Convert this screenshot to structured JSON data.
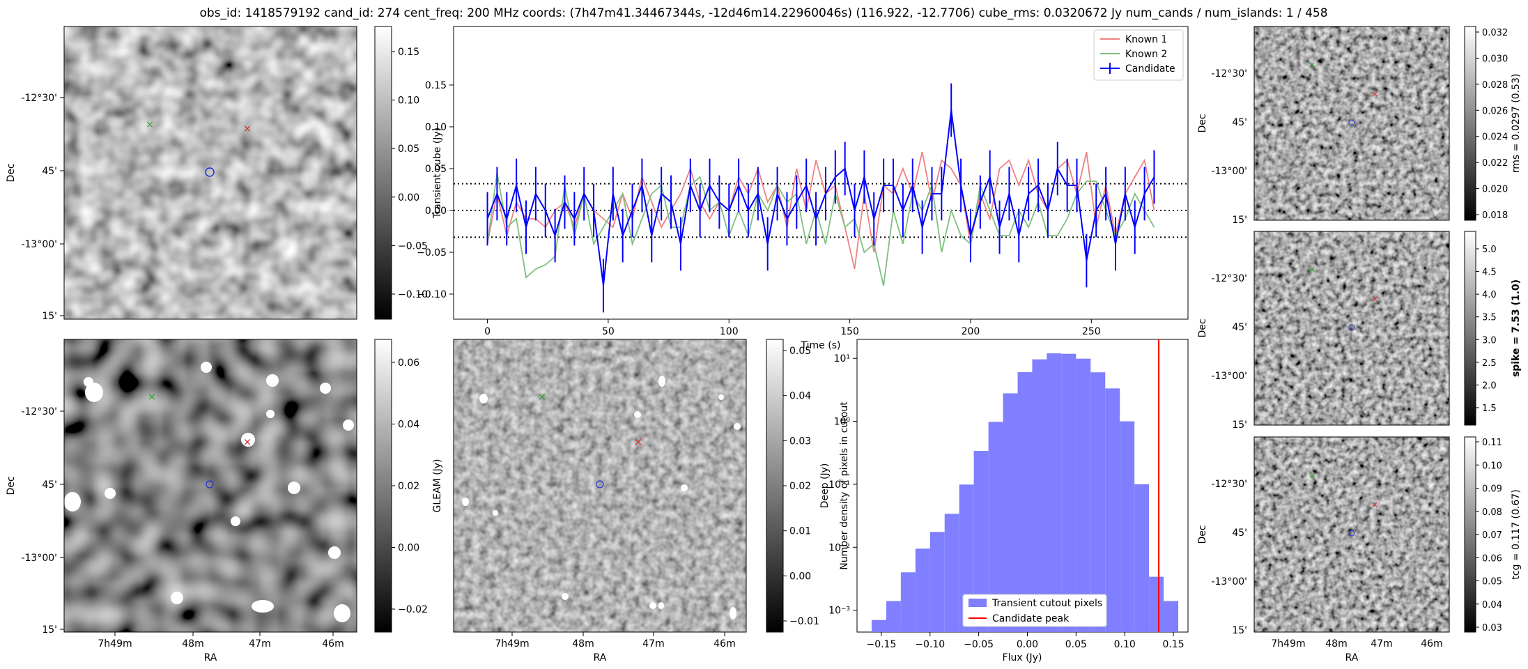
{
  "title": "obs_id: 1418579192 cand_id: 274 cent_freq: 200 MHz coords: (7h47m41.34467344s, -12d46m14.22960046s) (116.922, -12.7706) cube_rms: 0.0320672 Jy num_cands / num_islands: 1 / 458",
  "chart_data": [
    {
      "type": "image",
      "name": "transient-cube-image",
      "ylabel": "Dec",
      "xlabel": "",
      "dec_ticks": [
        "-12°30'",
        "45'",
        "-13°00'",
        "15'"
      ],
      "ra_ticks": [],
      "colorbar": {
        "label": "",
        "ticks": [
          "0.15",
          "0.10",
          "0.05",
          "0.00",
          "−0.05",
          "−0.10"
        ],
        "range": [
          -0.13,
          0.18
        ]
      },
      "markers": [
        {
          "label": "known-1",
          "color": "#d62728",
          "symbol": "x"
        },
        {
          "label": "known-2",
          "color": "#2ca02c",
          "symbol": "x"
        },
        {
          "label": "candidate",
          "color": "#1f2fd6",
          "symbol": "o"
        }
      ]
    },
    {
      "type": "line",
      "name": "lightcurve",
      "xlabel": "Time (s)",
      "ylabel": "Transient cube (Jy)",
      "xlim": [
        -14,
        290
      ],
      "ylim": [
        -0.13,
        0.22
      ],
      "xticks": [
        0,
        50,
        100,
        150,
        200,
        250
      ],
      "yticks": [
        -0.1,
        -0.05,
        0.0,
        0.05,
        0.1,
        0.15
      ],
      "ytick_labels": [
        "−0.10",
        "−0.05",
        "0.00",
        "0.05",
        "0.10",
        "0.15"
      ],
      "hlines": [
        0.032,
        0.0,
        -0.032
      ],
      "legend": [
        "Known 1",
        "Known 2",
        "Candidate"
      ],
      "x": [
        0,
        4,
        8,
        12,
        16,
        20,
        24,
        28,
        32,
        36,
        40,
        44,
        48,
        52,
        56,
        60,
        64,
        68,
        72,
        76,
        80,
        84,
        88,
        92,
        96,
        100,
        104,
        108,
        112,
        116,
        120,
        124,
        128,
        132,
        136,
        140,
        144,
        148,
        152,
        156,
        160,
        164,
        168,
        172,
        176,
        180,
        184,
        188,
        192,
        196,
        200,
        204,
        208,
        212,
        216,
        220,
        224,
        228,
        232,
        236,
        240,
        244,
        248,
        252,
        256,
        260,
        264,
        268,
        272,
        276
      ],
      "series": [
        {
          "name": "Known 1",
          "color": "#f08080",
          "values": [
            -0.04,
            0.02,
            -0.03,
            0.01,
            -0.01,
            -0.01,
            -0.02,
            0.0,
            0.01,
            -0.02,
            0.02,
            0.0,
            -0.01,
            -0.02,
            0.02,
            -0.01,
            0.04,
            0.01,
            -0.02,
            0.0,
            0.02,
            0.05,
            0.01,
            -0.01,
            0.01,
            0.0,
            0.04,
            0.02,
            0.05,
            0.01,
            0.03,
            -0.02,
            0.05,
            0.0,
            0.06,
            0.02,
            0.03,
            -0.02,
            -0.07,
            0.02,
            -0.05,
            0.03,
            0.02,
            0.05,
            0.02,
            0.07,
            0.01,
            0.06,
            0.05,
            0.03,
            -0.04,
            0.02,
            -0.01,
            0.05,
            0.06,
            0.03,
            0.06,
            0.02,
            0.0,
            0.05,
            0.06,
            0.02,
            0.07,
            -0.02,
            0.03,
            -0.03,
            0.02,
            0.04,
            0.06,
            0.0
          ]
        },
        {
          "name": "Known 2",
          "color": "#7fbf7f",
          "values": [
            -0.04,
            0.045,
            -0.02,
            -0.01,
            -0.08,
            -0.07,
            -0.065,
            -0.055,
            0.03,
            -0.03,
            0.02,
            -0.04,
            -0.02,
            0.0,
            0.02,
            -0.04,
            -0.01,
            0.02,
            0.03,
            -0.02,
            -0.02,
            0.03,
            0.04,
            0.0,
            0.01,
            -0.03,
            0.0,
            -0.03,
            0.02,
            0.0,
            0.03,
            0.01,
            0.02,
            -0.04,
            0.0,
            -0.04,
            0.02,
            -0.02,
            -0.01,
            -0.05,
            -0.04,
            -0.09,
            0.0,
            -0.04,
            0.02,
            0.0,
            0.03,
            -0.05,
            0.0,
            -0.03,
            -0.04,
            0.03,
            0.0,
            -0.03,
            -0.03,
            0.0,
            -0.02,
            0.01,
            -0.03,
            -0.03,
            -0.01,
            0.02,
            0.035,
            0.035,
            0.0,
            -0.03,
            -0.01,
            0.02,
            0.0,
            -0.02
          ]
        },
        {
          "name": "Candidate",
          "color": "#0000ff",
          "values": [
            -0.01,
            0.02,
            -0.01,
            0.03,
            -0.02,
            0.02,
            0.0,
            -0.03,
            0.01,
            -0.01,
            0.02,
            0.0,
            -0.09,
            0.02,
            -0.03,
            0.0,
            0.03,
            -0.03,
            0.02,
            0.01,
            -0.04,
            0.03,
            0.0,
            0.03,
            0.01,
            0.0,
            0.03,
            0.0,
            0.02,
            -0.04,
            0.02,
            -0.01,
            0.01,
            0.03,
            -0.01,
            0.02,
            0.04,
            0.05,
            0.0,
            0.04,
            -0.01,
            0.03,
            0.03,
            0.0,
            0.03,
            -0.02,
            0.02,
            0.02,
            0.12,
            0.03,
            -0.03,
            0.01,
            0.04,
            -0.02,
            0.02,
            -0.03,
            0.02,
            0.03,
            0.0,
            0.05,
            0.03,
            0.03,
            -0.06,
            0.0,
            0.02,
            -0.04,
            0.02,
            -0.02,
            0.02,
            0.04
          ],
          "err": 0.032
        }
      ]
    },
    {
      "type": "image",
      "name": "gleam-image",
      "ylabel": "Dec",
      "xlabel": "RA",
      "dec_ticks": [
        "-12°30'",
        "45'",
        "-13°00'",
        "15'"
      ],
      "ra_ticks": [
        "7h49m",
        "48m",
        "47m",
        "46m"
      ],
      "colorbar": {
        "label": "GLEAM (Jy)",
        "ticks": [
          "0.06",
          "0.04",
          "0.02",
          "0.00",
          "−0.02"
        ],
        "range": [
          -0.022,
          0.07
        ]
      }
    },
    {
      "type": "image",
      "name": "deep-image",
      "xlabel": "RA",
      "ra_ticks": [
        "7h49m",
        "48m",
        "47m",
        "46m"
      ],
      "colorbar": {
        "label": "Deep (Jy)",
        "ticks": [
          "0.05",
          "0.04",
          "0.03",
          "0.02",
          "0.01",
          "0.00",
          "−0.01"
        ],
        "range": [
          -0.019,
          0.061
        ]
      }
    },
    {
      "type": "histogram",
      "name": "pixel-histogram",
      "xlabel": "Flux (Jy)",
      "ylabel": "Number density of pixels in cutout",
      "yscale": "log",
      "xlim": [
        -0.175,
        0.165
      ],
      "xticks": [
        -0.15,
        -0.1,
        -0.05,
        0.0,
        0.05,
        0.1,
        0.15
      ],
      "xtick_labels": [
        "−0.15",
        "−0.10",
        "−0.05",
        "0.00",
        "0.05",
        "0.10",
        "0.15"
      ],
      "ytick_labels": [
        "10⁻³",
        "10⁻²",
        "10⁻¹",
        "10⁰",
        "10¹"
      ],
      "bin_edges": [
        -0.16,
        -0.145,
        -0.13,
        -0.115,
        -0.1,
        -0.085,
        -0.07,
        -0.055,
        -0.04,
        -0.025,
        -0.01,
        0.005,
        0.02,
        0.035,
        0.05,
        0.065,
        0.08,
        0.095,
        0.11,
        0.125,
        0.14,
        0.155
      ],
      "counts": [
        0.0007,
        0.0014,
        0.004,
        0.0095,
        0.0175,
        0.034,
        0.099,
        0.339,
        0.98,
        2.78,
        6.03,
        9.64,
        12.0,
        11.8,
        9.88,
        6.0,
        3.33,
        1.0,
        0.1,
        0.0034,
        0.0014
      ],
      "candidate_peak": 0.135,
      "legend": [
        "Transient cutout pixels",
        "Candidate peak"
      ]
    },
    {
      "type": "image",
      "name": "rms-map",
      "ylabel": "Dec",
      "dec_ticks": [
        "-12°30'",
        "45'",
        "-13°00'",
        "15'"
      ],
      "colorbar": {
        "label": "rms = 0.0297 (0.53)",
        "ticks": [
          "0.032",
          "0.030",
          "0.028",
          "0.026",
          "0.024",
          "0.022",
          "0.020",
          "0.018"
        ]
      }
    },
    {
      "type": "image",
      "name": "spike-map",
      "ylabel": "Dec",
      "dec_ticks": [
        "-12°30'",
        "45'",
        "-13°00'",
        "15'"
      ],
      "colorbar": {
        "label": "spike = 7.53 (1.0)",
        "ticks": [
          "5.0",
          "4.5",
          "4.0",
          "3.5",
          "3.0",
          "2.5",
          "2.0",
          "1.5"
        ]
      }
    },
    {
      "type": "image",
      "name": "tcg-map",
      "ylabel": "Dec",
      "xlabel": "RA",
      "dec_ticks": [
        "-12°30'",
        "45'",
        "-13°00'",
        "15'"
      ],
      "ra_ticks": [
        "7h49m",
        "48m",
        "47m",
        "46m"
      ],
      "colorbar": {
        "label": "tcg = 0.117 (0.67)",
        "ticks": [
          "0.11",
          "0.10",
          "0.09",
          "0.08",
          "0.07",
          "0.06",
          "0.05",
          "0.04",
          "0.03"
        ]
      }
    }
  ]
}
